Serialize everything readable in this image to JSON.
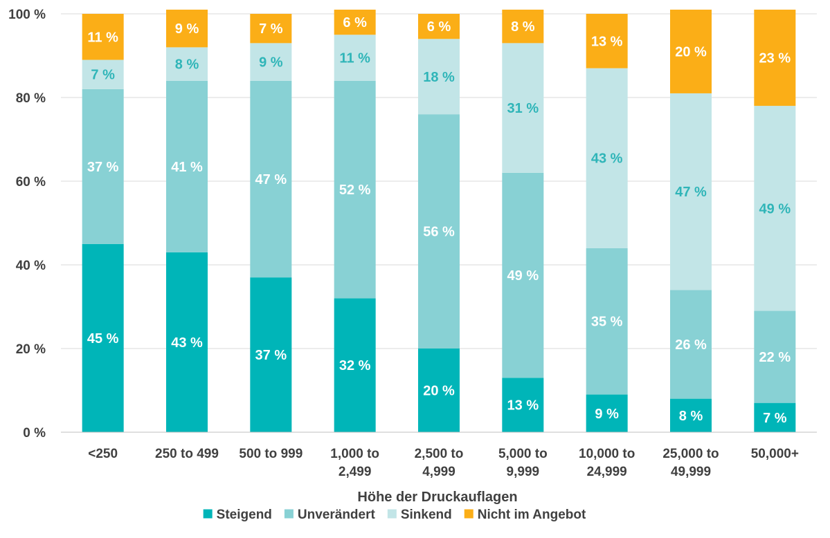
{
  "chart_data": {
    "type": "bar",
    "stacked": true,
    "xlabel": "Höhe der Druckauflagen",
    "ylabel": "",
    "ylim": [
      0,
      100
    ],
    "ytick_values": [
      0,
      20,
      40,
      60,
      80,
      100
    ],
    "ytick_labels": [
      "0 %",
      "20 %",
      "40 %",
      "60 %",
      "80 %",
      "100 %"
    ],
    "grid": true,
    "legend_position": "bottom",
    "categories": [
      [
        "<250"
      ],
      [
        "250 to 499"
      ],
      [
        "500 to 999"
      ],
      [
        "1,000 to",
        "2,499"
      ],
      [
        "2,500 to",
        "4,999"
      ],
      [
        "5,000 to",
        "9,999"
      ],
      [
        "10,000 to",
        "24,999"
      ],
      [
        "25,000 to",
        "49,999"
      ],
      [
        "50,000+"
      ]
    ],
    "series": [
      {
        "name": "Steigend",
        "color": "#00B5B8",
        "label_color": "#ffffff",
        "values": [
          45,
          43,
          37,
          32,
          20,
          13,
          9,
          8,
          7
        ]
      },
      {
        "name": "Unverändert",
        "color": "#88D1D4",
        "label_color": "#ffffff",
        "values": [
          37,
          41,
          47,
          52,
          56,
          49,
          35,
          26,
          22
        ]
      },
      {
        "name": "Sinkend",
        "color": "#C2E5E7",
        "label_color": "#2FB5B8",
        "values": [
          7,
          8,
          9,
          11,
          18,
          31,
          43,
          47,
          49
        ]
      },
      {
        "name": "Nicht im Angebot",
        "color": "#FBAE17",
        "label_color": "#ffffff",
        "values": [
          11,
          9,
          7,
          6,
          6,
          8,
          13,
          20,
          23
        ]
      }
    ],
    "value_suffix": " %"
  }
}
